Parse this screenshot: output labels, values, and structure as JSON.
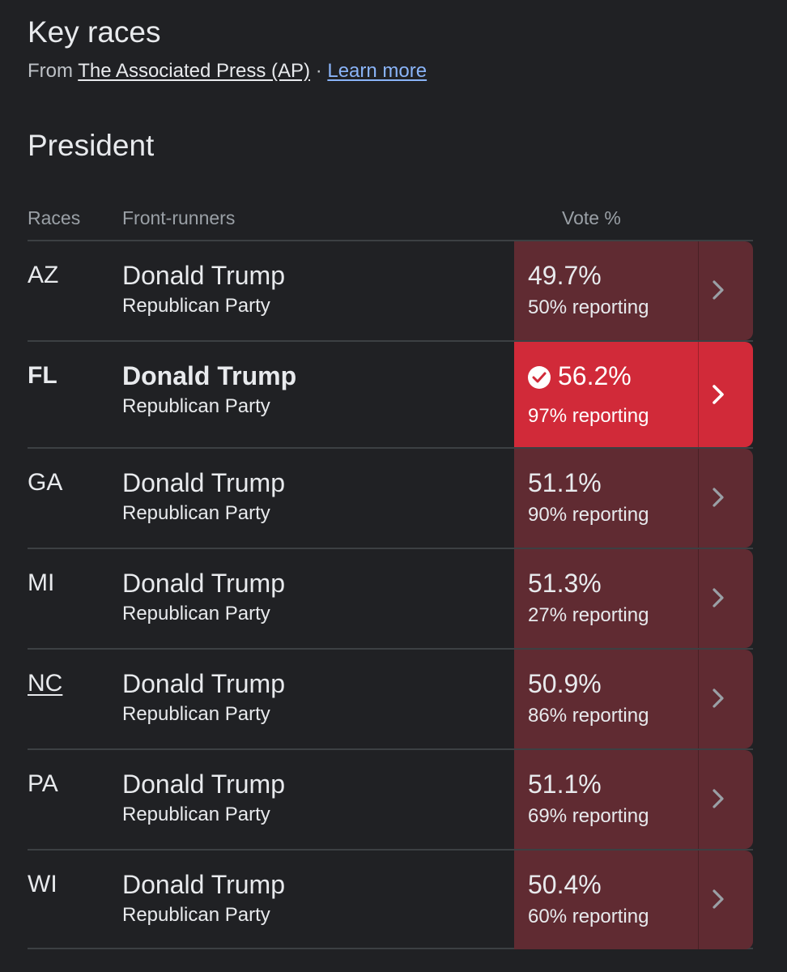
{
  "header": {
    "title": "Key races",
    "source_prefix": "From",
    "source_name": "The Associated Press (AP)",
    "separator": "·",
    "learn_more": "Learn more"
  },
  "section": {
    "title": "President"
  },
  "table": {
    "headers": {
      "races": "Races",
      "front_runners": "Front-runners",
      "vote": "Vote %"
    },
    "rows": [
      {
        "state": "AZ",
        "candidate": "Donald Trump",
        "party": "Republican Party",
        "vote": "49.7%",
        "reporting": "50% reporting",
        "called": false
      },
      {
        "state": "FL",
        "candidate": "Donald Trump",
        "party": "Republican Party",
        "vote": "56.2%",
        "reporting": "97% reporting",
        "called": true
      },
      {
        "state": "GA",
        "candidate": "Donald Trump",
        "party": "Republican Party",
        "vote": "51.1%",
        "reporting": "90% reporting",
        "called": false
      },
      {
        "state": "MI",
        "candidate": "Donald Trump",
        "party": "Republican Party",
        "vote": "51.3%",
        "reporting": "27% reporting",
        "called": false
      },
      {
        "state": "NC",
        "candidate": "Donald Trump",
        "party": "Republican Party",
        "vote": "50.9%",
        "reporting": "86% reporting",
        "called": false
      },
      {
        "state": "PA",
        "candidate": "Donald Trump",
        "party": "Republican Party",
        "vote": "51.1%",
        "reporting": "69% reporting",
        "called": false
      },
      {
        "state": "WI",
        "candidate": "Donald Trump",
        "party": "Republican Party",
        "vote": "50.4%",
        "reporting": "60% reporting",
        "called": false
      }
    ]
  },
  "colors": {
    "background": "#202124",
    "republican_leading": "#602b32",
    "republican_called": "#d12a39",
    "link": "#8ab4f8"
  },
  "icons": {
    "called_marker": "check-circle-icon",
    "row_arrow": "chevron-right-icon"
  }
}
